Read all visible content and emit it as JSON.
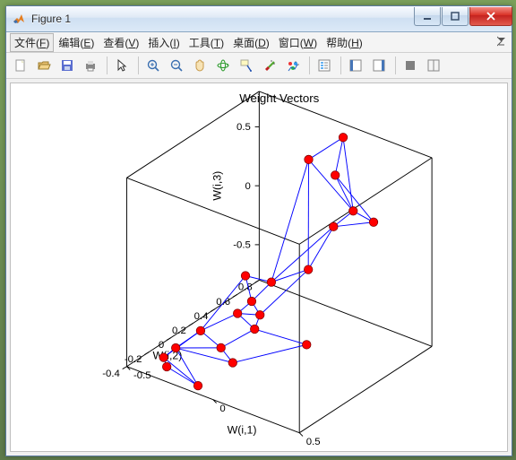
{
  "window": {
    "title": "Figure 1",
    "accent_border": "#5a7aa0"
  },
  "menu": {
    "items": [
      {
        "label": "文件",
        "accel": "F",
        "active": true
      },
      {
        "label": "编辑",
        "accel": "E"
      },
      {
        "label": "查看",
        "accel": "V"
      },
      {
        "label": "插入",
        "accel": "I"
      },
      {
        "label": "工具",
        "accel": "T"
      },
      {
        "label": "桌面",
        "accel": "D"
      },
      {
        "label": "窗口",
        "accel": "W"
      },
      {
        "label": "帮助",
        "accel": "H"
      }
    ]
  },
  "toolbar": {
    "icons": [
      "new",
      "open",
      "save",
      "print",
      "|",
      "pointer",
      "|",
      "zoom-in",
      "zoom-out",
      "pan",
      "rotate3d",
      "datacursor",
      "brush",
      "colorseries",
      "|",
      "insert-legend",
      "|",
      "show-plot-tools",
      "hide-plot-tools",
      "|",
      "link",
      "dock"
    ],
    "colors": {
      "new": "#e8e8c8",
      "open": "#e8c070",
      "save": "#5a6ed0",
      "print": "#888888",
      "pointer": "#333333",
      "zoom": "#3a6fb0",
      "pan": "#c79a4a",
      "rotate": "#2a9a2a",
      "datacursor": "#2050b0",
      "brush": "#c02020",
      "colorseries": "#2060c0",
      "legend": "#666666",
      "tool": "#4676b8",
      "link": "#888888",
      "dock": "#888888"
    }
  },
  "plot": {
    "type": "3d-line-scatter",
    "title": "Weight Vectors",
    "title_fontsize": 14,
    "xlabel": "W(i,1)",
    "ylabel": "W(i,2)",
    "zlabel": "W(i,3)",
    "label_fontsize": 13,
    "tick_fontsize": 12,
    "xlim": [
      -0.5,
      0.5
    ],
    "xticks": [
      -0.5,
      0,
      0.5
    ],
    "ylim": [
      -0.4,
      0.8
    ],
    "yticks": [
      -0.4,
      -0.2,
      0,
      0.2,
      0.4,
      0.6,
      0.8
    ],
    "zlim": [
      -0.8,
      0.8
    ],
    "zticks": [
      -0.5,
      0,
      0.5
    ],
    "line_color": "#0000ff",
    "line_width": 1,
    "marker_color": "#ff0000",
    "marker_edge": "#800000",
    "marker_size": 5,
    "box_color": "#000000",
    "background_color": "#ffffff",
    "pane_color": "#ffffff",
    "azimuth": -37.5,
    "elevation": 30,
    "points": [
      [
        0.05,
        0.7,
        0.78
      ],
      [
        0.1,
        0.55,
        0.58
      ],
      [
        0.45,
        0.35,
        0.5
      ],
      [
        0.3,
        0.4,
        0.48
      ],
      [
        0.25,
        0.3,
        0.38
      ],
      [
        -0.15,
        0.7,
        0.48
      ],
      [
        0.2,
        0.15,
        0.08
      ],
      [
        0.05,
        0.05,
        -0.05
      ],
      [
        -0.1,
        0.05,
        -0.08
      ],
      [
        0.0,
        -0.05,
        -0.18
      ],
      [
        0.08,
        -0.1,
        -0.22
      ],
      [
        -0.05,
        -0.1,
        -0.28
      ],
      [
        0.1,
        -0.18,
        -0.28
      ],
      [
        0.35,
        -0.1,
        -0.32
      ],
      [
        -0.2,
        -0.2,
        -0.45
      ],
      [
        -0.05,
        -0.25,
        -0.48
      ],
      [
        0.05,
        -0.3,
        -0.52
      ],
      [
        -0.35,
        -0.3,
        -0.7
      ],
      [
        -0.3,
        -0.35,
        -0.72
      ],
      [
        -0.28,
        -0.3,
        -0.58
      ],
      [
        -0.1,
        -0.38,
        -0.75
      ]
    ],
    "grid_edges": [
      [
        0,
        1
      ],
      [
        1,
        2
      ],
      [
        2,
        3
      ],
      [
        3,
        4
      ],
      [
        1,
        3
      ],
      [
        0,
        5
      ],
      [
        5,
        3
      ],
      [
        5,
        6
      ],
      [
        4,
        6
      ],
      [
        4,
        7
      ],
      [
        6,
        7
      ],
      [
        7,
        8
      ],
      [
        7,
        9
      ],
      [
        8,
        9
      ],
      [
        9,
        10
      ],
      [
        9,
        11
      ],
      [
        10,
        11
      ],
      [
        10,
        12
      ],
      [
        11,
        12
      ],
      [
        12,
        13
      ],
      [
        11,
        14
      ],
      [
        12,
        15
      ],
      [
        14,
        15
      ],
      [
        15,
        16
      ],
      [
        14,
        17
      ],
      [
        17,
        18
      ],
      [
        18,
        20
      ],
      [
        17,
        19
      ],
      [
        19,
        20
      ],
      [
        16,
        19
      ],
      [
        15,
        19
      ],
      [
        13,
        16
      ],
      [
        8,
        14
      ],
      [
        6,
        10
      ],
      [
        5,
        7
      ],
      [
        0,
        3
      ],
      [
        2,
        4
      ],
      [
        20,
        17
      ],
      [
        14,
        19
      ]
    ]
  }
}
